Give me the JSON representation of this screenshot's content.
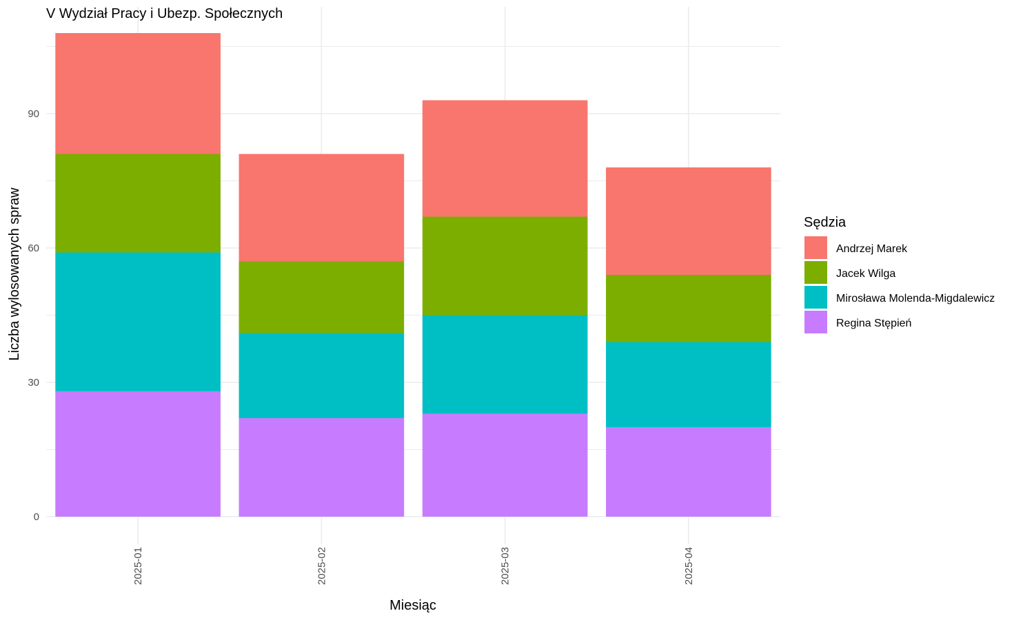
{
  "chart_data": {
    "type": "bar",
    "stacked": true,
    "title": "V Wydział Pracy i Ubezp. Społecznych",
    "xlabel": "Miesiąc",
    "ylabel": "Liczba wylosowanych spraw",
    "categories": [
      "2025-01",
      "2025-02",
      "2025-03",
      "2025-04"
    ],
    "yticks": [
      0,
      30,
      60,
      90
    ],
    "ylim": [
      0,
      110
    ],
    "grid": true,
    "legend": {
      "title": "Sędzia",
      "position": "right"
    },
    "series": [
      {
        "name": "Andrzej Marek",
        "color": "#F8766D",
        "values": [
          27,
          24,
          26,
          24
        ]
      },
      {
        "name": "Jacek Wilga",
        "color": "#7CAE00",
        "values": [
          22,
          16,
          22,
          15
        ]
      },
      {
        "name": "Mirosława Molenda-Migdalewicz",
        "color": "#00BFC4",
        "values": [
          31,
          19,
          22,
          19
        ]
      },
      {
        "name": "Regina Stępień",
        "color": "#C77CFF",
        "values": [
          28,
          22,
          23,
          20
        ]
      }
    ]
  }
}
